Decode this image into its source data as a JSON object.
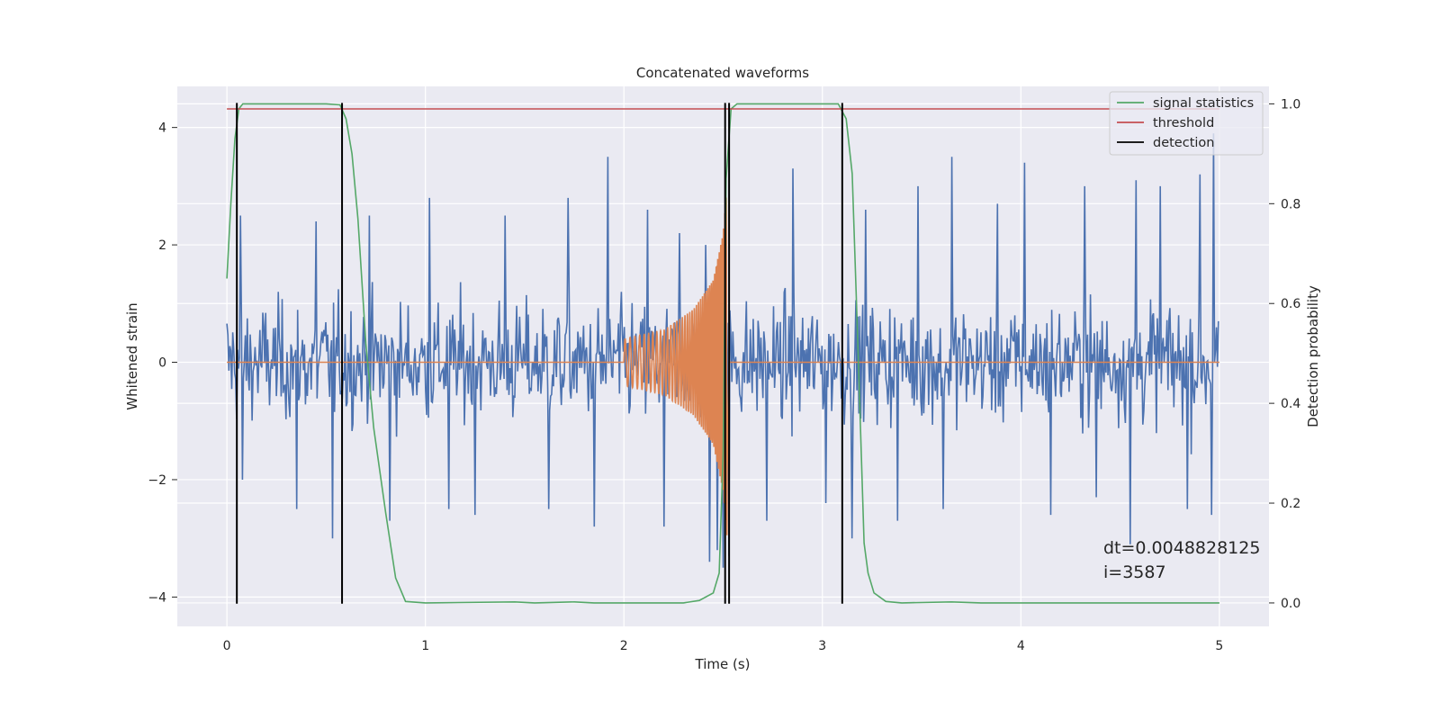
{
  "chart_data": {
    "type": "line",
    "title": "Concatenated waveforms",
    "xlabel": "Time (s)",
    "ylabel": "Whitened strain",
    "y2label": "Detection probability",
    "xlim": [
      -0.25,
      5.25
    ],
    "ylim": [
      -4.5,
      4.7
    ],
    "y2lim": [
      -0.047,
      1.035
    ],
    "xticks": [
      "0",
      "1",
      "2",
      "3",
      "4",
      "5"
    ],
    "yticks": [
      "−4",
      "−2",
      "0",
      "2",
      "4"
    ],
    "y2ticks": [
      "0.0",
      "0.2",
      "0.4",
      "0.6",
      "0.8",
      "1.0"
    ],
    "grid": true,
    "legend_position": "top-right",
    "legend": [
      {
        "label": "signal statistics",
        "color": "#55a868"
      },
      {
        "label": "threshold",
        "color": "#c44e52"
      },
      {
        "label": "detection",
        "color": "#000000"
      }
    ],
    "series": [
      {
        "name": "",
        "axis": "left",
        "color": "#4c72b0",
        "kind": "noise",
        "x_range": [
          0,
          5
        ],
        "sample_dt": 0.0048828125,
        "dense_band": [
          -0.7,
          0.95
        ],
        "typical_range": [
          -2.0,
          2.4
        ],
        "peaks": [
          [
            0.07,
            2.5
          ],
          [
            0.45,
            2.4
          ],
          [
            0.72,
            2.5
          ],
          [
            1.02,
            2.8
          ],
          [
            1.4,
            2.5
          ],
          [
            1.72,
            2.8
          ],
          [
            1.92,
            3.5
          ],
          [
            2.12,
            2.6
          ],
          [
            2.28,
            2.2
          ],
          [
            2.41,
            2.0
          ],
          [
            2.5,
            3.0
          ],
          [
            2.53,
            3.8
          ],
          [
            2.72,
            2.7
          ],
          [
            2.85,
            3.3
          ],
          [
            3.22,
            2.6
          ],
          [
            3.48,
            3.0
          ],
          [
            3.65,
            3.5
          ],
          [
            3.88,
            2.7
          ],
          [
            4.02,
            3.4
          ],
          [
            4.32,
            3.0
          ],
          [
            4.58,
            3.1
          ],
          [
            4.7,
            3.0
          ],
          [
            4.9,
            3.2
          ],
          [
            4.97,
            3.9
          ]
        ],
        "troughs": [
          [
            0.08,
            -2.0
          ],
          [
            0.35,
            -2.5
          ],
          [
            0.53,
            -3.0
          ],
          [
            0.82,
            -2.7
          ],
          [
            1.12,
            -2.5
          ],
          [
            1.25,
            -2.6
          ],
          [
            1.62,
            -2.5
          ],
          [
            1.85,
            -2.8
          ],
          [
            2.2,
            -2.8
          ],
          [
            2.43,
            -3.4
          ],
          [
            2.47,
            -3.2
          ],
          [
            2.5,
            -3.5
          ],
          [
            2.53,
            -3.3
          ],
          [
            2.72,
            -2.7
          ],
          [
            3.02,
            -2.4
          ],
          [
            3.15,
            -3.0
          ],
          [
            3.38,
            -2.7
          ],
          [
            3.61,
            -2.5
          ],
          [
            4.15,
            -2.6
          ],
          [
            4.38,
            -2.3
          ],
          [
            4.55,
            -3.1
          ],
          [
            4.84,
            -2.5
          ],
          [
            4.96,
            -2.6
          ]
        ]
      },
      {
        "name": "",
        "axis": "left",
        "color": "#dd8452",
        "kind": "chirp",
        "chirp_start": 2.0,
        "chirp_end": 2.52,
        "amplitude_profile": [
          [
            2.0,
            0.4
          ],
          [
            2.2,
            0.55
          ],
          [
            2.35,
            0.9
          ],
          [
            2.45,
            1.4
          ],
          [
            2.5,
            2.2
          ],
          [
            2.52,
            3.0
          ]
        ],
        "x_range": [
          0,
          5
        ]
      },
      {
        "name": "signal statistics",
        "axis": "right",
        "color": "#55a868",
        "points": [
          [
            0.0,
            0.65
          ],
          [
            0.02,
            0.8
          ],
          [
            0.04,
            0.93
          ],
          [
            0.06,
            0.99
          ],
          [
            0.08,
            1.0
          ],
          [
            0.5,
            1.0
          ],
          [
            0.57,
            0.998
          ],
          [
            0.6,
            0.97
          ],
          [
            0.63,
            0.9
          ],
          [
            0.66,
            0.77
          ],
          [
            0.7,
            0.52
          ],
          [
            0.74,
            0.35
          ],
          [
            0.8,
            0.18
          ],
          [
            0.85,
            0.05
          ],
          [
            0.9,
            0.003
          ],
          [
            1.0,
            0.0
          ],
          [
            1.45,
            0.002
          ],
          [
            1.55,
            0.0
          ],
          [
            1.75,
            0.002
          ],
          [
            1.85,
            0.0
          ],
          [
            2.3,
            0.0
          ],
          [
            2.38,
            0.005
          ],
          [
            2.45,
            0.02
          ],
          [
            2.48,
            0.06
          ],
          [
            2.5,
            0.3
          ],
          [
            2.515,
            0.85
          ],
          [
            2.54,
            0.99
          ],
          [
            2.57,
            1.0
          ],
          [
            3.08,
            1.0
          ],
          [
            3.12,
            0.97
          ],
          [
            3.15,
            0.86
          ],
          [
            3.18,
            0.5
          ],
          [
            3.21,
            0.12
          ],
          [
            3.23,
            0.06
          ],
          [
            3.26,
            0.02
          ],
          [
            3.32,
            0.003
          ],
          [
            3.4,
            0.0
          ],
          [
            3.65,
            0.002
          ],
          [
            3.8,
            0.0
          ],
          [
            5.0,
            0.0
          ]
        ]
      },
      {
        "name": "threshold",
        "axis": "right",
        "color": "#c44e52",
        "points": [
          [
            0.0,
            0.99
          ],
          [
            5.0,
            0.99
          ]
        ]
      }
    ],
    "detections": {
      "name": "detection",
      "color": "#000000",
      "x": [
        0.05,
        0.58,
        2.51,
        2.53,
        3.1
      ],
      "y_range": [
        -0.0015,
        1.0
      ]
    },
    "annotation": "dt=0.0048828125\n i=3587"
  }
}
